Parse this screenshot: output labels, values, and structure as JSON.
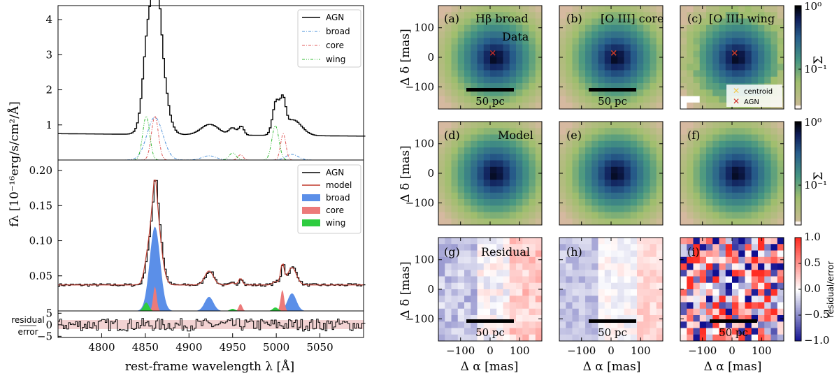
{
  "chart_data": [
    {
      "type": "line",
      "panel": "spectrum-top",
      "xlim": [
        4750,
        5100
      ],
      "ylim": [
        0,
        4.4
      ],
      "yticks": [
        "1",
        "2",
        "3",
        "4"
      ],
      "legend": [
        "AGN",
        "broad",
        "core",
        "wing"
      ],
      "ylabel": "fλ [10⁻¹⁶erg/s/cm²/Å]",
      "continuum": 0.75,
      "lines_broad": [
        [
          4861,
          3.3,
          9
        ],
        [
          4923,
          0.3,
          10
        ],
        [
          5018,
          0.45,
          10
        ]
      ],
      "lines_core": [
        [
          4862,
          1.22,
          4
        ],
        [
          4959,
          0.25,
          3
        ],
        [
          5007,
          0.78,
          3
        ]
      ],
      "lines_wing": [
        [
          4851,
          1.25,
          5
        ],
        [
          4949,
          0.2,
          4
        ],
        [
          4999,
          0.92,
          4
        ]
      ],
      "components": {
        "broad": [
          [
            4861,
            1.22,
            9
          ],
          [
            4923,
            0.12,
            8
          ],
          [
            5018,
            0.16,
            7
          ]
        ],
        "core": [
          [
            4861,
            1.25,
            4
          ],
          [
            4959,
            0.15,
            3
          ],
          [
            5008,
            0.75,
            3
          ]
        ],
        "wing": [
          [
            4851,
            1.25,
            4
          ],
          [
            4950,
            0.2,
            4
          ],
          [
            4999,
            0.98,
            4
          ]
        ]
      }
    },
    {
      "type": "area",
      "panel": "spectrum-fit",
      "xlim": [
        4750,
        5100
      ],
      "ylim": [
        0,
        0.215
      ],
      "yticks": [
        "0.05",
        "0.10",
        "0.15",
        "0.20"
      ],
      "legend": [
        "AGN",
        "model",
        "broad",
        "core",
        "wing"
      ],
      "continuum": 0.037,
      "broad": [
        [
          4861,
          0.12,
          6
        ],
        [
          4923,
          0.02,
          5
        ],
        [
          5018,
          0.025,
          5
        ]
      ],
      "core": [
        [
          4861,
          0.035,
          2
        ],
        [
          4959,
          0.01,
          2
        ],
        [
          5007,
          0.03,
          2
        ]
      ],
      "wing": [
        [
          4851,
          0.012,
          3
        ],
        [
          4950,
          0.003,
          3
        ],
        [
          4999,
          0.005,
          3
        ]
      ]
    },
    {
      "type": "line",
      "panel": "residual",
      "xlim": [
        4750,
        5100
      ],
      "ylim": [
        -5.5,
        6
      ],
      "yticks": [
        "5",
        "0",
        "−5"
      ],
      "ylabel_top": "residual",
      "ylabel_bottom": "error",
      "xticks": [
        "4800",
        "4850",
        "4900",
        "4950",
        "5000",
        "5050"
      ],
      "xlabel": "rest-frame wavelength λ [Å]"
    },
    {
      "type": "heatmap",
      "grid": "3x3 maps, 16x16 pixels each",
      "xlim": [
        -175,
        175
      ],
      "ylim": [
        -175,
        175
      ],
      "xticks": [
        "−100",
        "0",
        "100"
      ],
      "yticks": [
        "100",
        "0",
        "−100"
      ],
      "xlabel": "Δ α [mas]",
      "ylabel": "Δ δ [mas]",
      "row_labels": [
        "Data",
        "Model",
        "Residual"
      ],
      "panels": [
        {
          "tag": "(a)",
          "title": "Hβ broad"
        },
        {
          "tag": "(b)",
          "title": "[O III] core"
        },
        {
          "tag": "(c)",
          "title": "[O III] wing"
        },
        {
          "tag": "(d)",
          "title": ""
        },
        {
          "tag": "(e)",
          "title": ""
        },
        {
          "tag": "(f)",
          "title": ""
        },
        {
          "tag": "(g)",
          "title": ""
        },
        {
          "tag": "(h)",
          "title": ""
        },
        {
          "tag": "(i)",
          "title": ""
        }
      ],
      "scalebar": "50 pc",
      "markers": {
        "centroid": "centroid",
        "agn": "AGN",
        "agn_position": [
          10,
          15
        ]
      },
      "colorbars": [
        {
          "label": "Σ",
          "ticks": [
            "10⁰",
            "10⁻¹"
          ],
          "scale": "log"
        },
        {
          "label": "Σ",
          "ticks": [
            "10⁰",
            "10⁻¹"
          ],
          "scale": "log"
        },
        {
          "label": "residual/error",
          "ticks": [
            "1.0",
            "0.5",
            "0.0",
            "−0.5",
            "−1.0"
          ],
          "range": [
            -1,
            1
          ]
        }
      ]
    }
  ],
  "colors": {
    "agn": "#000000",
    "model": "#c0392b",
    "broad": "#5b8fe8",
    "core": "#ec7a7a",
    "wing": "#2ecc40",
    "broad_line": "#4a90d9",
    "core_line": "#e05a5a",
    "wing_line": "#33bb33",
    "band": "#f3d3d3"
  }
}
